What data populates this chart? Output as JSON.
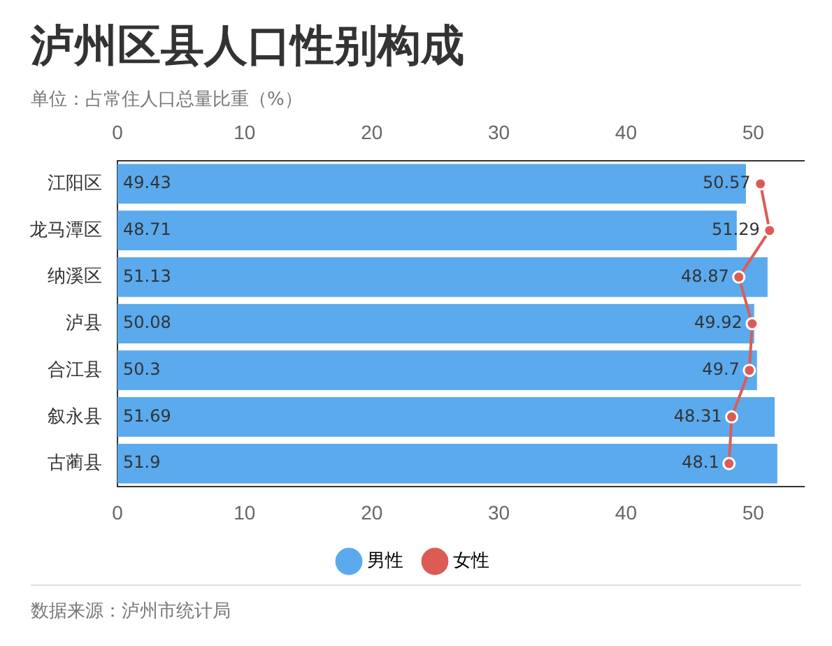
{
  "chart_data": {
    "type": "bar",
    "orientation": "horizontal",
    "title": "泸州区县人口性别构成",
    "subtitle": "单位：占常住人口总量比重（%）",
    "categories": [
      "江阳区",
      "龙马潭区",
      "纳溪区",
      "泸县",
      "合江县",
      "叙永县",
      "古蔺县"
    ],
    "series": [
      {
        "name": "男性",
        "color": "#5aaaed",
        "values": [
          49.43,
          48.71,
          51.13,
          50.08,
          50.3,
          51.69,
          51.9
        ]
      },
      {
        "name": "女性",
        "type": "line",
        "color": "#dc5c55",
        "marker": "circle",
        "values": [
          50.57,
          51.29,
          48.87,
          49.92,
          49.7,
          48.31,
          48.1
        ]
      }
    ],
    "xlim": [
      0,
      54
    ],
    "xticks": [
      0,
      10,
      20,
      30,
      40,
      50
    ],
    "x2lim": [
      0,
      54
    ],
    "x2ticks": [
      0,
      10,
      20,
      30,
      40,
      50
    ],
    "data_labels": true,
    "legend": "bottom",
    "annotations": [
      "数据来源：泸州市统计局"
    ]
  }
}
